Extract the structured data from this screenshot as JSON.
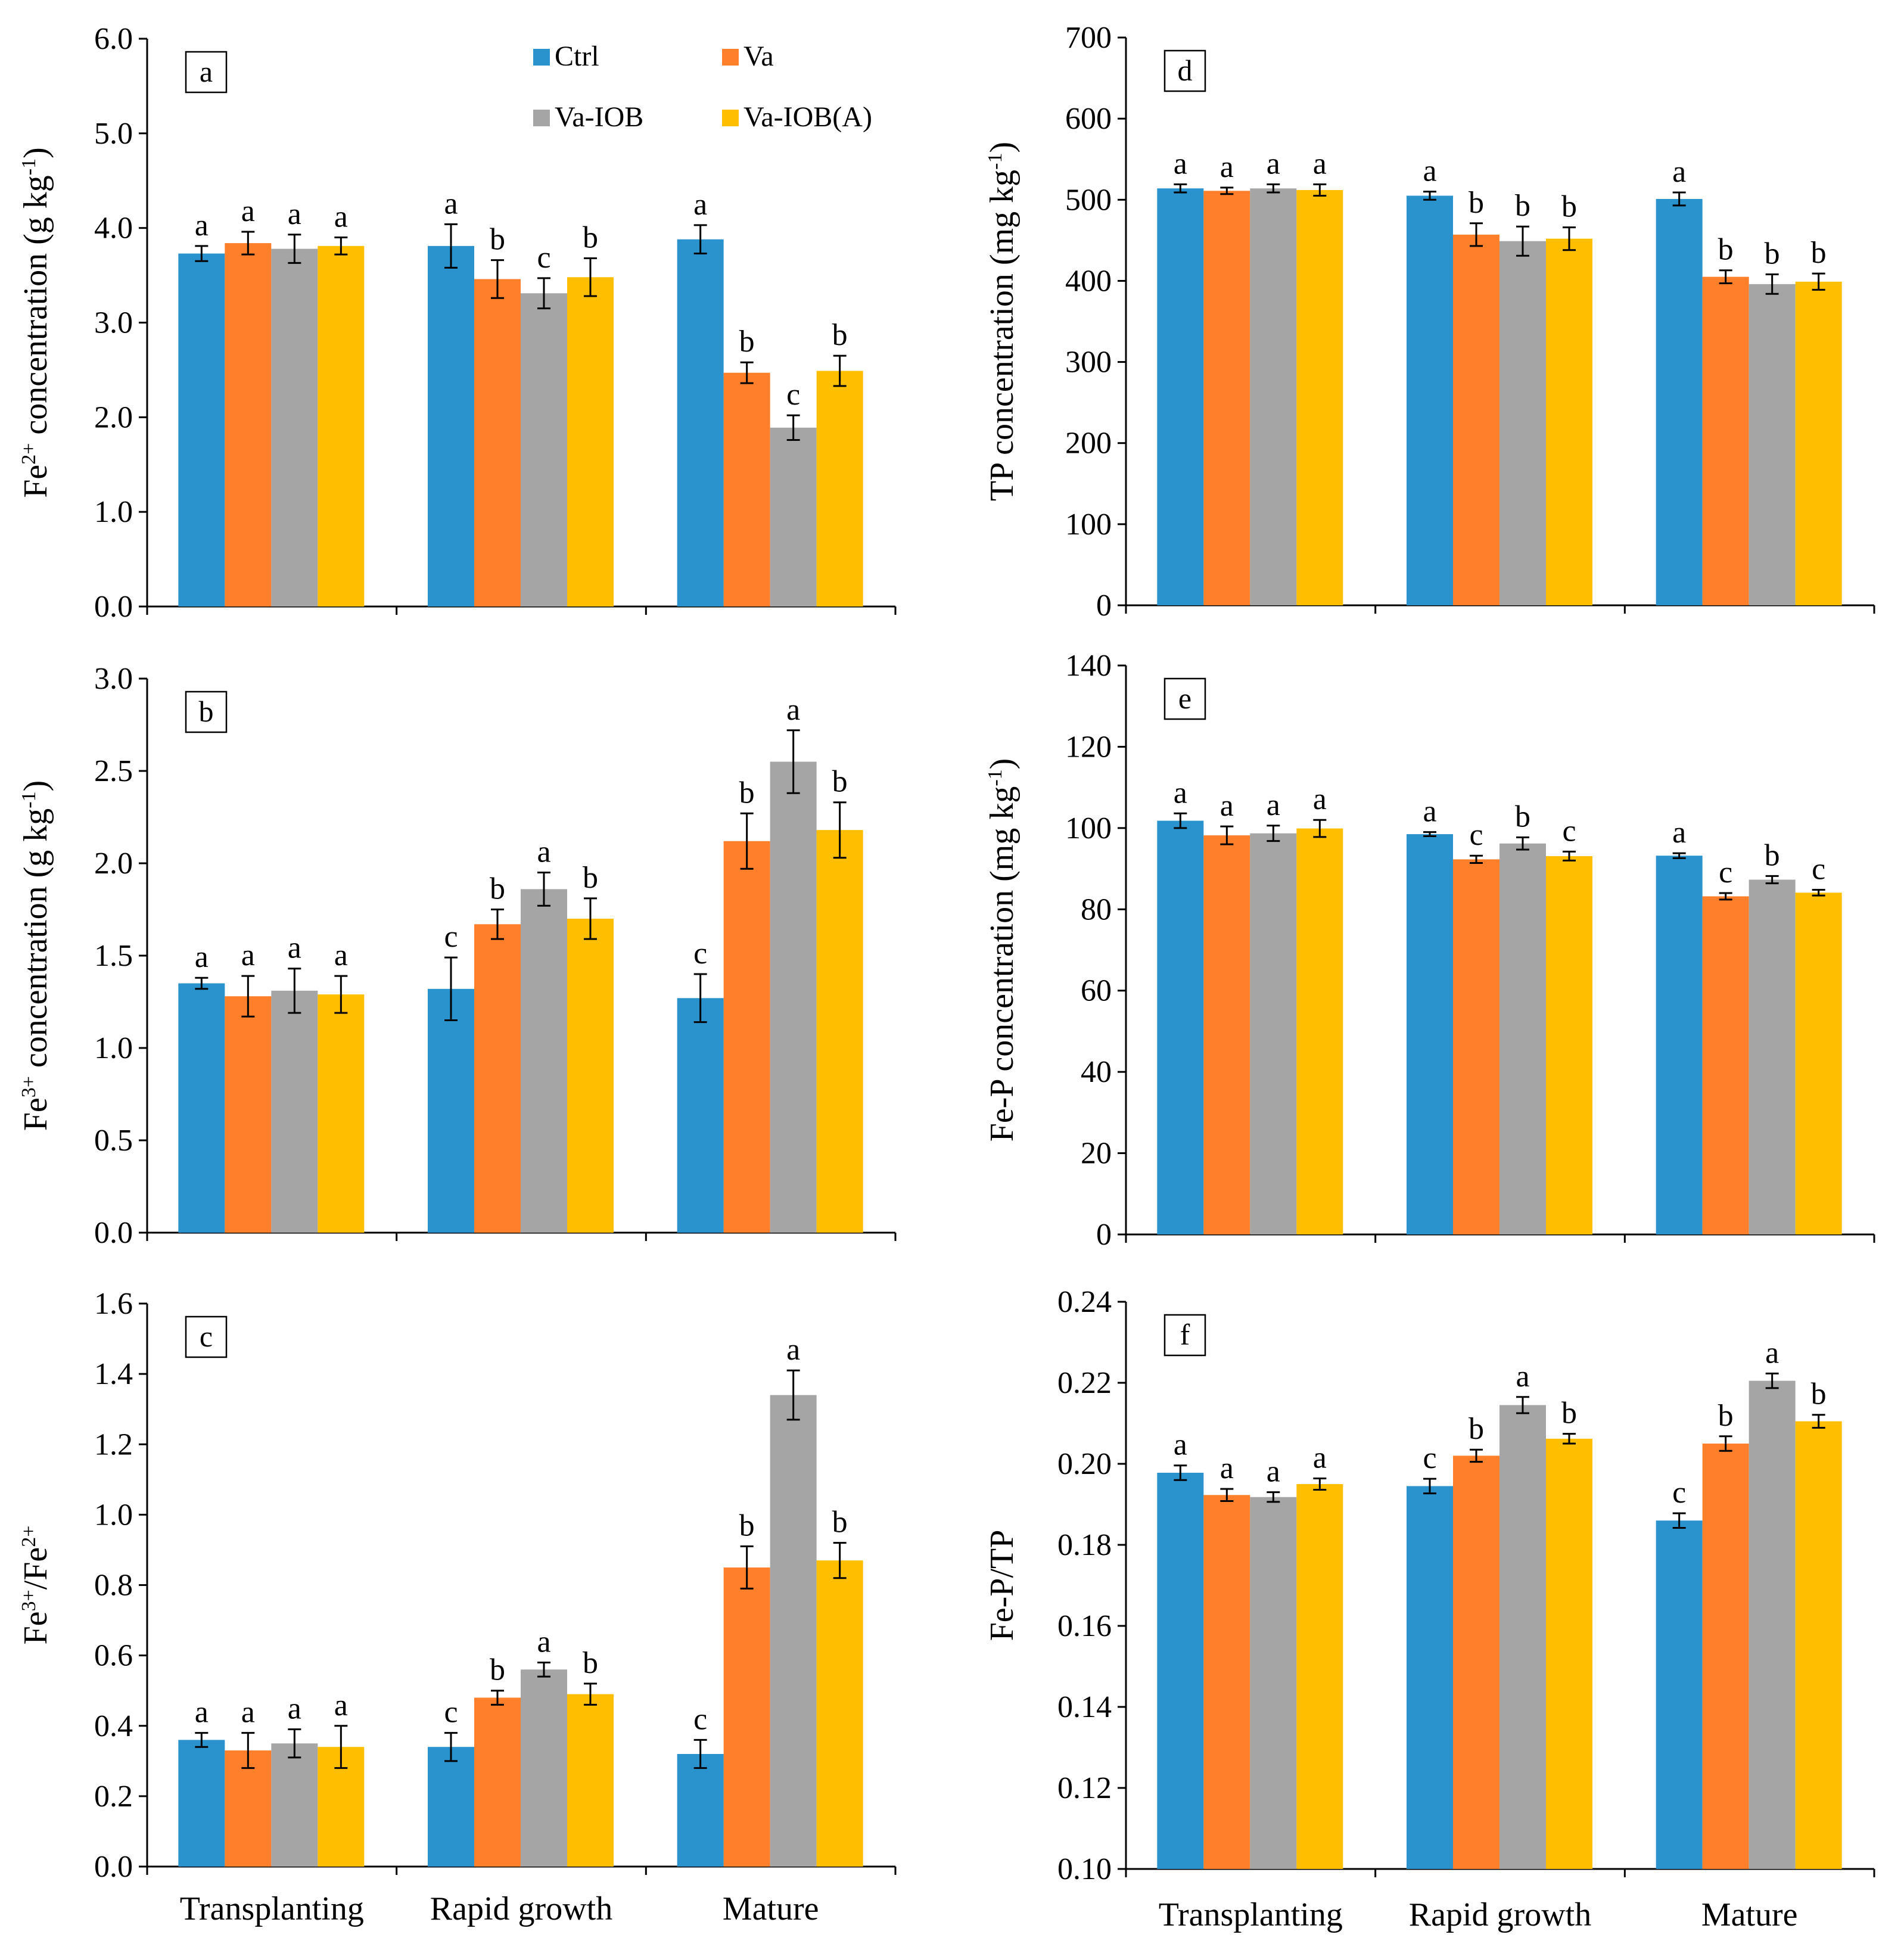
{
  "legend": [
    {
      "name": "Ctrl",
      "color": "#2A93CE"
    },
    {
      "name": "Va",
      "color": "#FF7F2A"
    },
    {
      "name": "Va-IOB",
      "color": "#A5A5A5"
    },
    {
      "name": "Va-IOB(A)",
      "color": "#FFBF00"
    }
  ],
  "x_categories": [
    "Transplanting",
    "Rapid growth",
    "Mature"
  ],
  "chart_data": [
    {
      "type": "bar",
      "panel": "a",
      "ylabel": "Fe2+ concentration (g kg-1)",
      "ylabel_parts": [
        "Fe",
        "2+",
        " concentration (g kg",
        "-1",
        ")"
      ],
      "ylim": [
        0,
        6
      ],
      "ytick_step": 1,
      "ytick_decimals": 1,
      "categories": [
        "Transplanting",
        "Rapid growth",
        "Mature"
      ],
      "series": [
        {
          "name": "Ctrl",
          "values": [
            3.73,
            3.81,
            3.88
          ],
          "errors": [
            0.08,
            0.23,
            0.15
          ],
          "letters": [
            "a",
            "a",
            "a"
          ]
        },
        {
          "name": "Va",
          "values": [
            3.84,
            3.46,
            2.47
          ],
          "errors": [
            0.12,
            0.2,
            0.11
          ],
          "letters": [
            "a",
            "b",
            "b"
          ]
        },
        {
          "name": "Va-IOB",
          "values": [
            3.78,
            3.31,
            1.89
          ],
          "errors": [
            0.15,
            0.16,
            0.13
          ],
          "letters": [
            "a",
            "c",
            "c"
          ]
        },
        {
          "name": "Va-IOB(A)",
          "values": [
            3.81,
            3.48,
            2.49
          ],
          "errors": [
            0.09,
            0.2,
            0.16
          ],
          "letters": [
            "a",
            "b",
            "b"
          ]
        }
      ]
    },
    {
      "type": "bar",
      "panel": "b",
      "ylabel": "Fe3+ concentration (g kg-1)",
      "ylabel_parts": [
        "Fe",
        "3+",
        " concentration (g kg",
        "-1",
        ")"
      ],
      "ylim": [
        0,
        3
      ],
      "ytick_step": 0.5,
      "ytick_decimals": 1,
      "categories": [
        "Transplanting",
        "Rapid growth",
        "Mature"
      ],
      "series": [
        {
          "name": "Ctrl",
          "values": [
            1.35,
            1.32,
            1.27
          ],
          "errors": [
            0.03,
            0.17,
            0.13
          ],
          "letters": [
            "a",
            "c",
            "c"
          ]
        },
        {
          "name": "Va",
          "values": [
            1.28,
            1.67,
            2.12
          ],
          "errors": [
            0.11,
            0.08,
            0.15
          ],
          "letters": [
            "a",
            "b",
            "b"
          ]
        },
        {
          "name": "Va-IOB",
          "values": [
            1.31,
            1.86,
            2.55
          ],
          "errors": [
            0.12,
            0.09,
            0.17
          ],
          "letters": [
            "a",
            "a",
            "a"
          ]
        },
        {
          "name": "Va-IOB(A)",
          "values": [
            1.29,
            1.7,
            2.18
          ],
          "errors": [
            0.1,
            0.11,
            0.15
          ],
          "letters": [
            "a",
            "b",
            "b"
          ]
        }
      ]
    },
    {
      "type": "bar",
      "panel": "c",
      "ylabel": "Fe3+/Fe2+",
      "ylabel_parts": [
        "Fe",
        "3+",
        "/Fe",
        "2+",
        ""
      ],
      "ylim": [
        0,
        1.6
      ],
      "ytick_step": 0.2,
      "ytick_decimals": 1,
      "categories": [
        "Transplanting",
        "Rapid growth",
        "Mature"
      ],
      "series": [
        {
          "name": "Ctrl",
          "values": [
            0.36,
            0.34,
            0.32
          ],
          "errors": [
            0.02,
            0.04,
            0.04
          ],
          "letters": [
            "a",
            "c",
            "c"
          ]
        },
        {
          "name": "Va",
          "values": [
            0.33,
            0.48,
            0.85
          ],
          "errors": [
            0.05,
            0.02,
            0.06
          ],
          "letters": [
            "a",
            "b",
            "b"
          ]
        },
        {
          "name": "Va-IOB",
          "values": [
            0.35,
            0.56,
            1.34
          ],
          "errors": [
            0.04,
            0.02,
            0.07
          ],
          "letters": [
            "a",
            "a",
            "a"
          ]
        },
        {
          "name": "Va-IOB(A)",
          "values": [
            0.34,
            0.49,
            0.87
          ],
          "errors": [
            0.06,
            0.03,
            0.05
          ],
          "letters": [
            "a",
            "b",
            "b"
          ]
        }
      ]
    },
    {
      "type": "bar",
      "panel": "d",
      "ylabel": "TP concentration (mg kg-1)",
      "ylabel_parts": [
        "TP concentration (mg kg",
        "-1",
        ")",
        "",
        ""
      ],
      "ylim": [
        0,
        700
      ],
      "ytick_step": 100,
      "ytick_decimals": 0,
      "categories": [
        "Transplanting",
        "Rapid growth",
        "Mature"
      ],
      "series": [
        {
          "name": "Ctrl",
          "values": [
            514,
            505,
            501
          ],
          "errors": [
            5,
            5,
            8
          ],
          "letters": [
            "a",
            "a",
            "a"
          ]
        },
        {
          "name": "Va",
          "values": [
            511,
            457,
            405
          ],
          "errors": [
            4,
            14,
            8
          ],
          "letters": [
            "a",
            "b",
            "b"
          ]
        },
        {
          "name": "Va-IOB",
          "values": [
            514,
            449,
            396
          ],
          "errors": [
            5,
            18,
            12
          ],
          "letters": [
            "a",
            "b",
            "b"
          ]
        },
        {
          "name": "Va-IOB(A)",
          "values": [
            512,
            452,
            399
          ],
          "errors": [
            7,
            14,
            10
          ],
          "letters": [
            "a",
            "b",
            "b"
          ]
        }
      ]
    },
    {
      "type": "bar",
      "panel": "e",
      "ylabel": "Fe-P concentration (mg kg-1)",
      "ylabel_parts": [
        "Fe-P concentration (mg kg",
        "-1",
        ")",
        "",
        ""
      ],
      "ylim": [
        0,
        140
      ],
      "ytick_step": 20,
      "ytick_decimals": 0,
      "categories": [
        "Transplanting",
        "Rapid growth",
        "Mature"
      ],
      "series": [
        {
          "name": "Ctrl",
          "values": [
            101.8,
            98.5,
            93.2
          ],
          "errors": [
            1.8,
            0.5,
            0.6
          ],
          "letters": [
            "a",
            "a",
            "a"
          ]
        },
        {
          "name": "Va",
          "values": [
            98.2,
            92.3,
            83.2
          ],
          "errors": [
            2.2,
            0.9,
            0.8
          ],
          "letters": [
            "a",
            "c",
            "c"
          ]
        },
        {
          "name": "Va-IOB",
          "values": [
            98.7,
            96.2,
            87.3
          ],
          "errors": [
            1.9,
            1.5,
            0.9
          ],
          "letters": [
            "a",
            "b",
            "b"
          ]
        },
        {
          "name": "Va-IOB(A)",
          "values": [
            99.9,
            93.1,
            84.1
          ],
          "errors": [
            2.1,
            1.1,
            0.7
          ],
          "letters": [
            "a",
            "c",
            "c"
          ]
        }
      ]
    },
    {
      "type": "bar",
      "panel": "f",
      "ylabel": "Fe-P/TP",
      "ylabel_parts": [
        "Fe-P/TP",
        "",
        "",
        "",
        ""
      ],
      "ylim": [
        0.1,
        0.24
      ],
      "ytick_step": 0.02,
      "ytick_decimals": 2,
      "categories": [
        "Transplanting",
        "Rapid growth",
        "Mature"
      ],
      "series": [
        {
          "name": "Ctrl",
          "values": [
            0.1978,
            0.1945,
            0.186
          ],
          "errors": [
            0.0018,
            0.0018,
            0.0018
          ],
          "letters": [
            "a",
            "c",
            "c"
          ]
        },
        {
          "name": "Va",
          "values": [
            0.1923,
            0.202,
            0.205
          ],
          "errors": [
            0.0015,
            0.0015,
            0.0018
          ],
          "letters": [
            "a",
            "b",
            "b"
          ]
        },
        {
          "name": "Va-IOB",
          "values": [
            0.1918,
            0.2145,
            0.2205
          ],
          "errors": [
            0.0012,
            0.002,
            0.0018
          ],
          "letters": [
            "a",
            "a",
            "a"
          ]
        },
        {
          "name": "Va-IOB(A)",
          "values": [
            0.195,
            0.2062,
            0.2105
          ],
          "errors": [
            0.0014,
            0.0012,
            0.0016
          ],
          "letters": [
            "a",
            "b",
            "b"
          ]
        }
      ]
    }
  ]
}
